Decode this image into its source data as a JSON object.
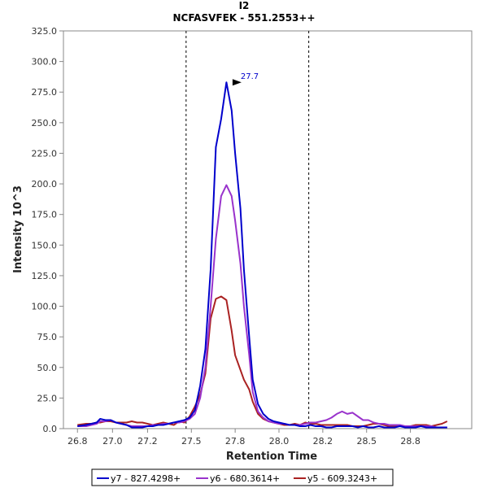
{
  "chart_data": {
    "type": "line",
    "title": "I2",
    "subtitle": "NCFASVFEK - 551.2553++",
    "xlabel": "Retention Time",
    "ylabel": "Intensity 10^3",
    "xlim": [
      26.72,
      29.05
    ],
    "ylim": [
      0,
      325
    ],
    "x_ticks": [
      "26.8",
      "27.0",
      "27.2",
      "27.5",
      "27.8",
      "28.0",
      "28.2",
      "28.5",
      "28.8"
    ],
    "x_tick_values": [
      26.8,
      27.0,
      27.2,
      27.45,
      27.7,
      27.95,
      28.2,
      28.45,
      28.7
    ],
    "y_ticks": [
      "0.0",
      "25.0",
      "50.0",
      "75.0",
      "100.0",
      "125.0",
      "150.0",
      "175.0",
      "200.0",
      "225.0",
      "250.0",
      "275.0",
      "300.0",
      "325.0"
    ],
    "y_tick_values": [
      0,
      25,
      50,
      75,
      100,
      125,
      150,
      175,
      200,
      225,
      250,
      275,
      300,
      325
    ],
    "boundaries": [
      27.42,
      28.12
    ],
    "peak_annotation": {
      "label": "27.7",
      "x": 27.75,
      "y": 283
    },
    "legend_position": "bottom",
    "grid": false,
    "series": [
      {
        "name": "y7 - 827.4298+",
        "color": "#0000cc",
        "x": [
          26.8,
          26.85,
          26.88,
          26.91,
          26.93,
          26.96,
          26.99,
          27.02,
          27.05,
          27.08,
          27.11,
          27.14,
          27.17,
          27.2,
          27.23,
          27.26,
          27.29,
          27.32,
          27.35,
          27.38,
          27.41,
          27.44,
          27.47,
          27.5,
          27.53,
          27.56,
          27.59,
          27.62,
          27.65,
          27.68,
          27.7,
          27.73,
          27.75,
          27.78,
          27.8,
          27.83,
          27.86,
          27.89,
          27.92,
          27.95,
          27.98,
          28.01,
          28.04,
          28.07,
          28.1,
          28.13,
          28.16,
          28.19,
          28.22,
          28.25,
          28.28,
          28.31,
          28.34,
          28.37,
          28.4,
          28.43,
          28.46,
          28.49,
          28.52,
          28.55,
          28.58,
          28.61,
          28.64,
          28.67,
          28.7,
          28.73,
          28.76,
          28.79,
          28.82,
          28.85,
          28.88,
          28.91
        ],
        "values": [
          2,
          3,
          4,
          5,
          8,
          7,
          7,
          5,
          4,
          3,
          1,
          1,
          1,
          2,
          2,
          3,
          3,
          4,
          5,
          6,
          7,
          9,
          15,
          35,
          65,
          130,
          230,
          253,
          283,
          260,
          225,
          180,
          130,
          75,
          40,
          20,
          12,
          8,
          6,
          5,
          4,
          3,
          3,
          2,
          2,
          3,
          2,
          2,
          1,
          1,
          2,
          2,
          2,
          2,
          1,
          2,
          1,
          1,
          2,
          1,
          1,
          1,
          2,
          1,
          1,
          1,
          2,
          1,
          1,
          1,
          1,
          1
        ]
      },
      {
        "name": "y6 - 680.3614+",
        "color": "#9933cc",
        "x": [
          26.8,
          26.85,
          26.88,
          26.91,
          26.93,
          26.96,
          26.99,
          27.02,
          27.05,
          27.08,
          27.11,
          27.14,
          27.17,
          27.2,
          27.23,
          27.26,
          27.29,
          27.32,
          27.35,
          27.38,
          27.41,
          27.44,
          27.47,
          27.5,
          27.53,
          27.56,
          27.59,
          27.62,
          27.65,
          27.68,
          27.7,
          27.73,
          27.75,
          27.78,
          27.8,
          27.83,
          27.86,
          27.89,
          27.92,
          27.95,
          27.98,
          28.01,
          28.04,
          28.07,
          28.1,
          28.13,
          28.16,
          28.19,
          28.22,
          28.25,
          28.28,
          28.31,
          28.34,
          28.37,
          28.4,
          28.43,
          28.46,
          28.49,
          28.52,
          28.55,
          28.58,
          28.61,
          28.64,
          28.67,
          28.7,
          28.73,
          28.76,
          28.79,
          28.82,
          28.85,
          28.88,
          28.91
        ],
        "values": [
          2,
          2,
          3,
          4,
          6,
          6,
          7,
          5,
          4,
          3,
          2,
          2,
          2,
          2,
          3,
          3,
          4,
          4,
          5,
          5,
          6,
          8,
          12,
          25,
          50,
          100,
          155,
          190,
          199,
          190,
          170,
          135,
          100,
          60,
          30,
          14,
          9,
          6,
          5,
          4,
          4,
          3,
          3,
          3,
          4,
          5,
          5,
          6,
          7,
          9,
          12,
          14,
          12,
          13,
          10,
          7,
          7,
          5,
          4,
          4,
          3,
          3,
          3,
          2,
          2,
          2,
          2,
          2,
          2,
          1,
          1,
          1
        ]
      },
      {
        "name": "y5 - 609.3243+",
        "color": "#aa2222",
        "x": [
          26.8,
          26.85,
          26.88,
          26.91,
          26.93,
          26.96,
          26.99,
          27.02,
          27.05,
          27.08,
          27.11,
          27.14,
          27.17,
          27.2,
          27.23,
          27.26,
          27.29,
          27.32,
          27.35,
          27.38,
          27.41,
          27.44,
          27.47,
          27.5,
          27.53,
          27.56,
          27.59,
          27.62,
          27.65,
          27.68,
          27.7,
          27.73,
          27.75,
          27.78,
          27.8,
          27.83,
          27.86,
          27.89,
          27.92,
          27.95,
          27.98,
          28.01,
          28.04,
          28.07,
          28.1,
          28.13,
          28.16,
          28.19,
          28.22,
          28.25,
          28.28,
          28.31,
          28.34,
          28.37,
          28.4,
          28.43,
          28.46,
          28.49,
          28.52,
          28.55,
          28.58,
          28.61,
          28.64,
          28.67,
          28.7,
          28.73,
          28.76,
          28.79,
          28.82,
          28.85,
          28.88,
          28.91
        ],
        "values": [
          3,
          4,
          4,
          5,
          5,
          6,
          6,
          5,
          5,
          5,
          6,
          5,
          5,
          4,
          3,
          4,
          5,
          4,
          3,
          6,
          5,
          10,
          18,
          28,
          45,
          90,
          106,
          108,
          105,
          80,
          60,
          48,
          40,
          32,
          22,
          12,
          8,
          6,
          5,
          4,
          3,
          3,
          4,
          3,
          5,
          4,
          4,
          3,
          3,
          3,
          3,
          3,
          3,
          2,
          2,
          2,
          3,
          4,
          4,
          3,
          2,
          2,
          2,
          2,
          2,
          3,
          3,
          3,
          2,
          3,
          4,
          6
        ]
      }
    ]
  }
}
